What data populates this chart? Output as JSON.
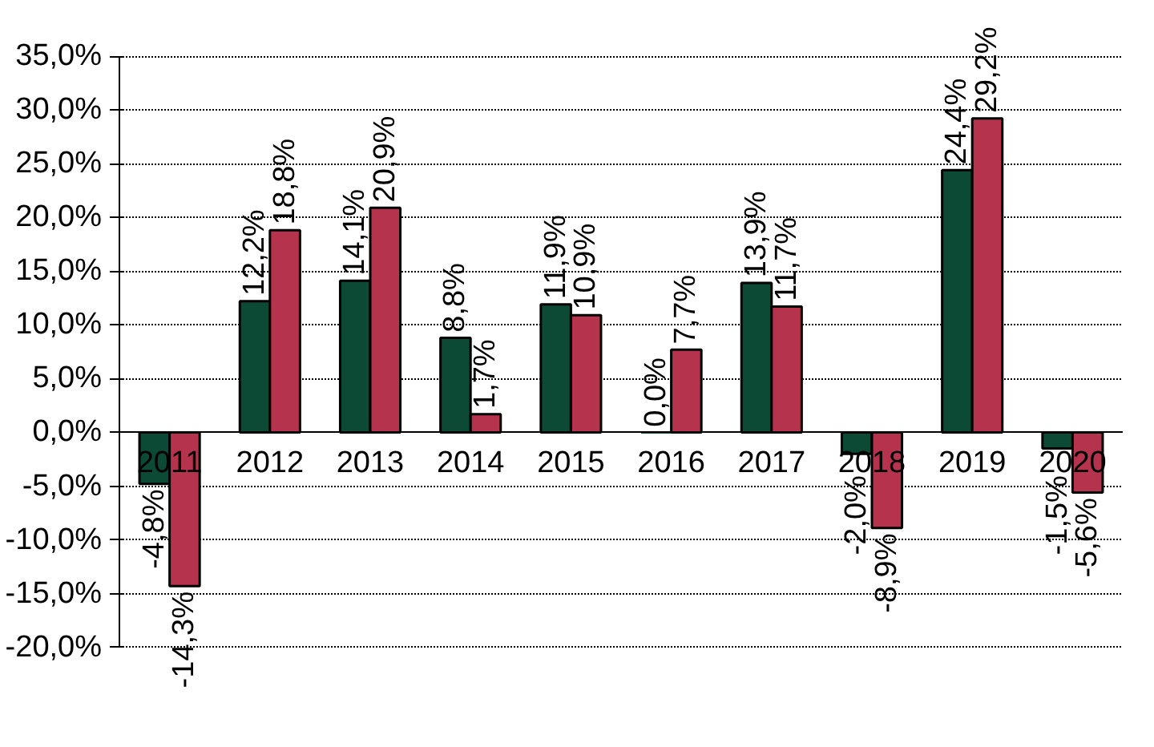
{
  "chart_data": {
    "type": "bar",
    "categories": [
      "2011",
      "2012",
      "2013",
      "2014",
      "2015",
      "2016",
      "2017",
      "2018",
      "2019",
      "2020"
    ],
    "series": [
      {
        "color": "#0d4a35",
        "values": [
          -4.8,
          12.2,
          14.1,
          8.8,
          11.9,
          0.0,
          13.9,
          -2.0,
          24.4,
          -1.5
        ],
        "value_labels": [
          "-4,8%",
          "12,2%",
          "14,1%",
          "8,8%",
          "11,9%",
          "0,0%",
          "13,9%",
          "-2,0%",
          "24,4%",
          "-1,5%"
        ]
      },
      {
        "color": "#b5334c",
        "values": [
          -14.3,
          18.8,
          20.9,
          1.7,
          10.9,
          7.7,
          11.7,
          -8.9,
          29.2,
          -5.6
        ],
        "value_labels": [
          "-14,3%",
          "18,8%",
          "20,9%",
          "1,7%",
          "10,9%",
          "7,7%",
          "11,7%",
          "-8,9%",
          "29,2%",
          "-5,6%"
        ]
      }
    ],
    "ylim": [
      -20,
      35
    ],
    "yticks": [
      {
        "value": -20,
        "label": "-20,0%"
      },
      {
        "value": -15,
        "label": "-15,0%"
      },
      {
        "value": -10,
        "label": "-10,0%"
      },
      {
        "value": -5,
        "label": "-5,0%"
      },
      {
        "value": 0,
        "label": "0,0%"
      },
      {
        "value": 5,
        "label": "5,0%"
      },
      {
        "value": 10,
        "label": "10,0%"
      },
      {
        "value": 15,
        "label": "15,0%"
      },
      {
        "value": 20,
        "label": "20,0%"
      },
      {
        "value": 25,
        "label": "25,0%"
      },
      {
        "value": 30,
        "label": "30,0%"
      },
      {
        "value": 35,
        "label": "35,0%"
      }
    ],
    "grid": "y"
  }
}
